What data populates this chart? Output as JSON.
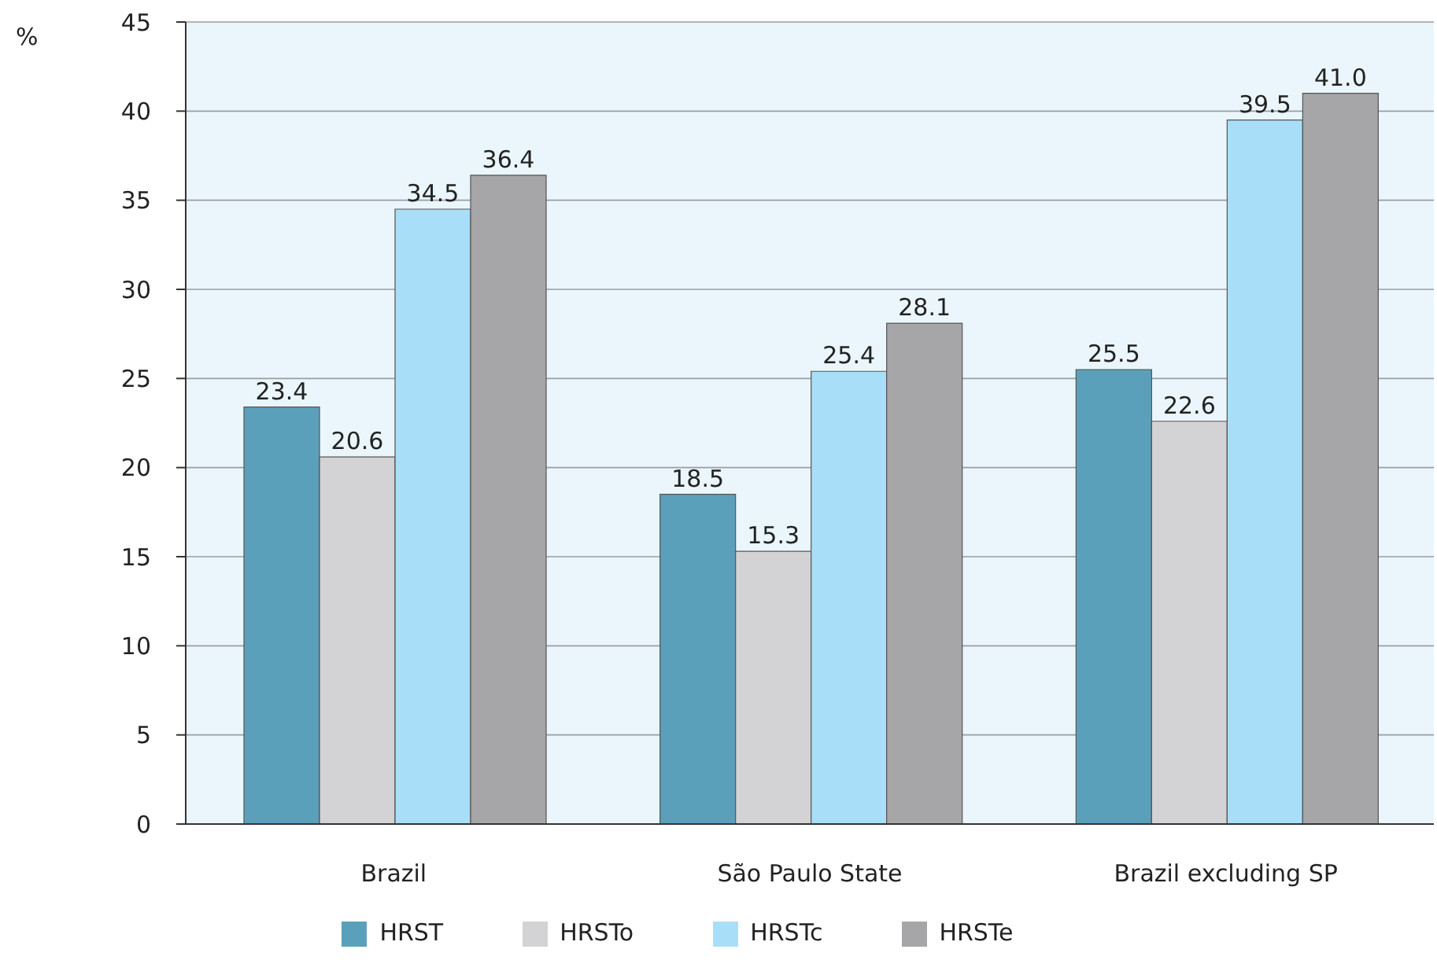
{
  "chart_data": {
    "type": "bar",
    "ylabel": "%",
    "categories": [
      "Brazil",
      "São Paulo State",
      "Brazil excluding SP"
    ],
    "series": [
      {
        "name": "HRST",
        "color": "#5ba0bb",
        "values": [
          23.4,
          18.5,
          25.5
        ],
        "value_labels": [
          "23.4",
          "18.5",
          "25.5"
        ]
      },
      {
        "name": "HRSTo",
        "color": "#d3d3d5",
        "values": [
          20.6,
          15.3,
          22.6
        ],
        "value_labels": [
          "20.6",
          "15.3",
          "22.6"
        ]
      },
      {
        "name": "HRSTc",
        "color": "#a9def8",
        "values": [
          34.5,
          25.4,
          39.5
        ],
        "value_labels": [
          "34.5",
          "25.4",
          "39.5"
        ]
      },
      {
        "name": "HRSTe",
        "color": "#a6a6a9",
        "values": [
          36.4,
          28.1,
          41.0
        ],
        "value_labels": [
          "36.4",
          "28.1",
          "41.0"
        ]
      }
    ],
    "ylim": [
      0,
      45
    ],
    "yticks": [
      0,
      5,
      10,
      15,
      20,
      25,
      30,
      35,
      40,
      45
    ],
    "grid": "y",
    "legend": "bottom"
  }
}
